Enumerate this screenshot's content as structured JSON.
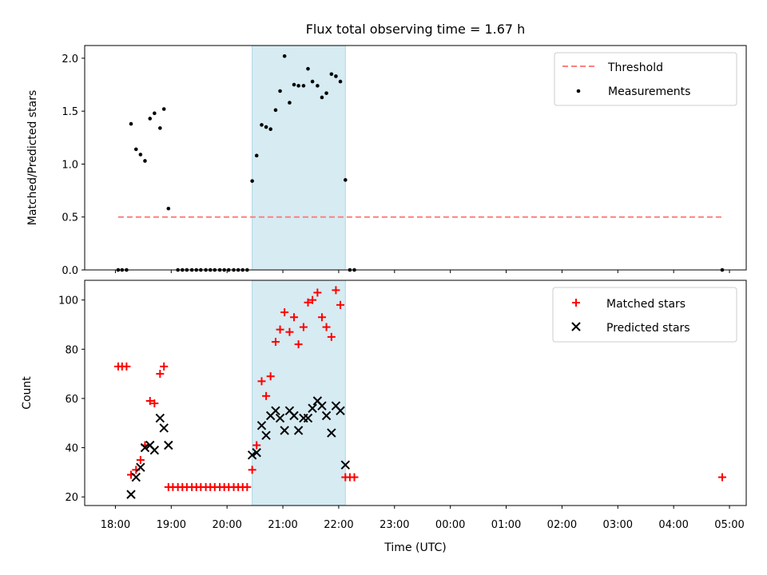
{
  "chart_data": [
    {
      "type": "scatter",
      "title": "Flux total observing time = 1.67 h",
      "xlabel": "",
      "ylabel": "Matched/Predicted stars",
      "ylim": [
        0,
        2.12
      ],
      "yticks": [
        0.0,
        0.5,
        1.0,
        1.5,
        2.0
      ],
      "yticklabels": [
        "0.0",
        "0.5",
        "1.0",
        "1.5",
        "2.0"
      ],
      "xlim_hours": [
        17.45,
        29.3
      ],
      "shaded_span_hours": [
        20.45,
        22.12
      ],
      "shade_color": "#add8e6",
      "grid": false,
      "legend_position": "top-right",
      "series": [
        {
          "name": "Threshold",
          "style": "dashed-line",
          "color": "#ff7f7f",
          "x": [
            18.05,
            28.88
          ],
          "y": [
            0.5,
            0.5
          ]
        },
        {
          "name": "Measurements",
          "style": "dot",
          "color": "#000000",
          "x": [
            18.05,
            18.12,
            18.2,
            18.28,
            18.37,
            18.45,
            18.53,
            18.62,
            18.7,
            18.8,
            18.87,
            18.95,
            19.12,
            19.2,
            19.28,
            19.37,
            19.45,
            19.53,
            19.62,
            19.7,
            19.78,
            19.87,
            19.95,
            20.03,
            20.12,
            20.2,
            20.28,
            20.36,
            20.45,
            20.53,
            20.62,
            20.7,
            20.78,
            20.87,
            20.95,
            21.03,
            21.12,
            21.2,
            21.28,
            21.37,
            21.45,
            21.53,
            21.62,
            21.7,
            21.78,
            21.87,
            21.95,
            22.03,
            22.12,
            22.2,
            22.28,
            28.87
          ],
          "y": [
            0.0,
            0.0,
            0.0,
            1.38,
            1.14,
            1.09,
            1.03,
            1.43,
            1.48,
            1.34,
            1.52,
            0.58,
            0.0,
            0.0,
            0.0,
            0.0,
            0.0,
            0.0,
            0.0,
            0.0,
            0.0,
            0.0,
            0.0,
            0.0,
            0.0,
            0.0,
            0.0,
            0.0,
            0.84,
            1.08,
            1.37,
            1.35,
            1.33,
            1.51,
            1.69,
            2.02,
            1.58,
            1.75,
            1.74,
            1.74,
            1.9,
            1.78,
            1.74,
            1.63,
            1.67,
            1.85,
            1.83,
            1.78,
            0.85,
            0.0,
            0.0,
            0.0
          ]
        }
      ]
    },
    {
      "type": "scatter",
      "title": "",
      "xlabel": "Time (UTC)",
      "ylabel": "Count",
      "ylim": [
        16.5,
        108
      ],
      "yticks": [
        20,
        40,
        60,
        80,
        100
      ],
      "yticklabels": [
        "20",
        "40",
        "60",
        "80",
        "100"
      ],
      "xlim_hours": [
        17.45,
        29.3
      ],
      "xticks_hours": [
        18,
        19,
        20,
        21,
        22,
        23,
        24,
        25,
        26,
        27,
        28,
        29
      ],
      "xticklabels": [
        "18:00",
        "19:00",
        "20:00",
        "21:00",
        "22:00",
        "23:00",
        "00:00",
        "01:00",
        "02:00",
        "03:00",
        "04:00",
        "05:00"
      ],
      "shaded_span_hours": [
        20.45,
        22.12
      ],
      "shade_color": "#add8e6",
      "grid": false,
      "legend_position": "top-right",
      "series": [
        {
          "name": "Matched stars",
          "marker": "plus",
          "color": "#ff0000",
          "x": [
            18.05,
            18.12,
            18.2,
            18.28,
            18.37,
            18.45,
            18.53,
            18.62,
            18.7,
            18.8,
            18.87,
            18.95,
            19.03,
            19.12,
            19.2,
            19.28,
            19.37,
            19.45,
            19.53,
            19.62,
            19.7,
            19.78,
            19.87,
            19.95,
            20.03,
            20.12,
            20.2,
            20.28,
            20.36,
            20.45,
            20.53,
            20.62,
            20.7,
            20.78,
            20.87,
            20.95,
            21.03,
            21.12,
            21.2,
            21.28,
            21.37,
            21.45,
            21.53,
            21.62,
            21.7,
            21.78,
            21.87,
            21.95,
            22.03,
            22.12,
            22.2,
            22.28,
            28.87
          ],
          "y": [
            73,
            73,
            73,
            29,
            31,
            35,
            41,
            59,
            58,
            70,
            73,
            24,
            24,
            24,
            24,
            24,
            24,
            24,
            24,
            24,
            24,
            24,
            24,
            24,
            24,
            24,
            24,
            24,
            24,
            31,
            41,
            67,
            61,
            69,
            83,
            88,
            95,
            87,
            93,
            82,
            89,
            99,
            100,
            103,
            93,
            89,
            85,
            104,
            98,
            28,
            28,
            28,
            28
          ]
        },
        {
          "name": "Predicted stars",
          "marker": "x",
          "color": "#000000",
          "x": [
            18.28,
            18.37,
            18.45,
            18.53,
            18.62,
            18.7,
            18.8,
            18.87,
            18.95,
            20.45,
            20.53,
            20.62,
            20.7,
            20.78,
            20.87,
            20.95,
            21.03,
            21.12,
            21.2,
            21.28,
            21.37,
            21.45,
            21.53,
            21.62,
            21.7,
            21.78,
            21.87,
            21.95,
            22.03,
            22.12
          ],
          "y": [
            21,
            28,
            32,
            40,
            41,
            39,
            52,
            48,
            41,
            37,
            38,
            49,
            45,
            53,
            55,
            52,
            47,
            55,
            53,
            47,
            52,
            52,
            56,
            59,
            57,
            53,
            46,
            57,
            55,
            33
          ]
        }
      ]
    }
  ]
}
